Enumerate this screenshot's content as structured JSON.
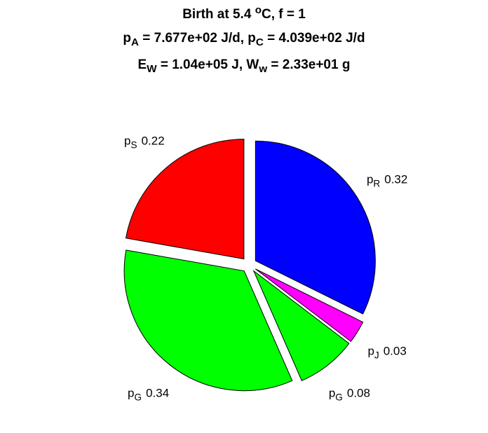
{
  "chart_data": {
    "type": "pie",
    "title": [
      [
        {
          "text": "Birth at 5.4 "
        },
        {
          "text": "o",
          "shift": "super"
        },
        {
          "text": "C, f = 1"
        }
      ],
      [
        {
          "text": "p"
        },
        {
          "text": "A",
          "shift": "sub"
        },
        {
          "text": " = 7.677e+02 J/d, p"
        },
        {
          "text": "C",
          "shift": "sub"
        },
        {
          "text": " = 4.039e+02 J/d"
        }
      ],
      [
        {
          "text": "E"
        },
        {
          "text": "W",
          "shift": "sub"
        },
        {
          "text": " = 1.04e+05 J, W"
        },
        {
          "text": "w",
          "shift": "sub"
        },
        {
          "text": " = 2.33e+01 g"
        }
      ]
    ],
    "categories": [
      [
        {
          "text": "p"
        },
        {
          "text": "R",
          "shift": "sub"
        }
      ],
      [
        {
          "text": "p"
        },
        {
          "text": "J",
          "shift": "sub"
        }
      ],
      [
        {
          "text": "p"
        },
        {
          "text": "G",
          "shift": "sub"
        }
      ],
      [
        {
          "text": "p"
        },
        {
          "text": "G",
          "shift": "sub"
        }
      ],
      [
        {
          "text": "p"
        },
        {
          "text": "S",
          "shift": "sub"
        }
      ]
    ],
    "values": [
      0.32,
      0.03,
      0.08,
      0.34,
      0.22
    ],
    "colors": [
      "#0000ff",
      "#ff00ff",
      "#00ff00",
      "#00ff00",
      "#ff0000"
    ],
    "exploded": true
  }
}
